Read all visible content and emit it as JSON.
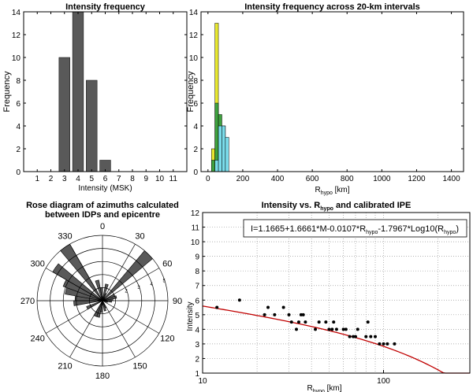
{
  "chart_data": [
    {
      "type": "bar",
      "title": "Intensity frequency",
      "xlabel": "Intensity (MSK)",
      "ylabel": "Frequency",
      "x_ticks": [
        "1",
        "2",
        "3",
        "4",
        "5",
        "6",
        "7",
        "8",
        "9",
        "10",
        "11"
      ],
      "y_ticks": [
        "0",
        "2",
        "4",
        "6",
        "8",
        "10",
        "12",
        "14"
      ],
      "ylim": [
        0,
        14
      ],
      "categories": [
        3,
        4,
        5,
        6
      ],
      "values": [
        10,
        14,
        8,
        1
      ],
      "bar_color": "#595959"
    },
    {
      "type": "bar",
      "title": "Intensity frequency across 20-km intervals",
      "xlabel": "R",
      "xlabel_sub": "hypo",
      "xlabel_unit": "[km]",
      "ylabel": "Frequency",
      "x_ticks": [
        "0",
        "200",
        "400",
        "600",
        "800",
        "1000",
        "1200",
        "1400"
      ],
      "y_ticks": [
        "0",
        "2",
        "4",
        "6",
        "8",
        "10",
        "12",
        "14"
      ],
      "xlim": [
        -40,
        1470
      ],
      "ylim": [
        0,
        14
      ],
      "bin_width_km": 20,
      "series": [
        {
          "color": "#e8e830",
          "bins": [
            {
              "x0": 20,
              "x1": 40,
              "value": 2
            },
            {
              "x0": 40,
              "x1": 60,
              "value": 13
            }
          ]
        },
        {
          "color": "#3fa23f",
          "bins": [
            {
              "x0": 20,
              "x1": 40,
              "value": 1
            },
            {
              "x0": 40,
              "x1": 60,
              "value": 6
            },
            {
              "x0": 60,
              "x1": 80,
              "value": 5
            },
            {
              "x0": 80,
              "x1": 100,
              "value": 4
            }
          ]
        },
        {
          "color": "#7adcea",
          "bins": [
            {
              "x0": 40,
              "x1": 60,
              "value": 1
            },
            {
              "x0": 60,
              "x1": 80,
              "value": 4
            },
            {
              "x0": 80,
              "x1": 100,
              "value": 4
            },
            {
              "x0": 100,
              "x1": 120,
              "value": 3
            }
          ]
        }
      ]
    },
    {
      "type": "rose",
      "title_lines": [
        "Rose diagram of azimuths calculated",
        "between  IDPs and epicentre"
      ],
      "angle_labels": [
        {
          "deg": 0,
          "text": "0"
        },
        {
          "deg": 30,
          "text": "30"
        },
        {
          "deg": 60,
          "text": "60"
        },
        {
          "deg": 90,
          "text": "90"
        },
        {
          "deg": 120,
          "text": "120"
        },
        {
          "deg": 150,
          "text": "150"
        },
        {
          "deg": 180,
          "text": "180"
        },
        {
          "deg": 210,
          "text": "210"
        },
        {
          "deg": 240,
          "text": "240"
        },
        {
          "deg": 270,
          "text": "270"
        },
        {
          "deg": 300,
          "text": "300"
        },
        {
          "deg": 330,
          "text": "330"
        }
      ],
      "radial_ticks": [
        "1",
        "2",
        "3",
        "4",
        "5"
      ],
      "rmax": 5,
      "sectors": [
        {
          "az0": 10,
          "az1": 20,
          "r": 1.3
        },
        {
          "az0": 20,
          "az1": 30,
          "r": 0.6
        },
        {
          "az0": 40,
          "az1": 50,
          "r": 5.0
        },
        {
          "az0": 60,
          "az1": 70,
          "r": 1.0
        },
        {
          "az0": 70,
          "az1": 80,
          "r": 1.1
        },
        {
          "az0": 80,
          "az1": 90,
          "r": 0.8
        },
        {
          "az0": 90,
          "az1": 100,
          "r": 0.7
        },
        {
          "az0": 100,
          "az1": 110,
          "r": 0.4
        },
        {
          "az0": 150,
          "az1": 160,
          "r": 0.6
        },
        {
          "az0": 160,
          "az1": 170,
          "r": 0.8
        },
        {
          "az0": 180,
          "az1": 190,
          "r": 0.9
        },
        {
          "az0": 190,
          "az1": 200,
          "r": 1.3
        },
        {
          "az0": 200,
          "az1": 210,
          "r": 1.3
        },
        {
          "az0": 240,
          "az1": 250,
          "r": 1.3
        },
        {
          "az0": 260,
          "az1": 270,
          "r": 2.2
        },
        {
          "az0": 270,
          "az1": 280,
          "r": 2.1
        },
        {
          "az0": 280,
          "az1": 290,
          "r": 2.9
        },
        {
          "az0": 290,
          "az1": 300,
          "r": 3.2
        },
        {
          "az0": 300,
          "az1": 310,
          "r": 4.4
        },
        {
          "az0": 320,
          "az1": 330,
          "r": 5.0
        },
        {
          "az0": 340,
          "az1": 350,
          "r": 1.6
        },
        {
          "az0": 350,
          "az1": 360,
          "r": 1.0
        }
      ],
      "fill_color": "#595959"
    },
    {
      "type": "scatter",
      "title_before": "Intensity vs. R",
      "title_sub": "hypo",
      "title_after": " and calibrated IPE",
      "xlabel": "R",
      "xlabel_sub": "hypo",
      "xlabel_unit": "[km]",
      "ylabel": "Intensity",
      "x_scale": "log",
      "xlim": [
        10,
        300
      ],
      "ylim": [
        1,
        12
      ],
      "x_ticks": [
        {
          "v": 10,
          "t": "10"
        },
        {
          "v": 100,
          "t": "100"
        }
      ],
      "y_ticks": [
        "1",
        "2",
        "3",
        "4",
        "5",
        "6",
        "7",
        "8",
        "9",
        "10",
        "11",
        "12"
      ],
      "grid": true,
      "equation_segments": [
        {
          "t": "I=1.1665+1.6661*M-0.0107*R",
          "sub": false
        },
        {
          "t": "hypo",
          "sub": true
        },
        {
          "t": "-1.7967*Log10(R",
          "sub": false
        },
        {
          "t": "hypo",
          "sub": true
        },
        {
          "t": ")",
          "sub": false
        }
      ],
      "curve": {
        "a": 1.1665,
        "b": 1.6661,
        "c": 0.0107,
        "d": 1.7967,
        "M": 3.8,
        "color": "#c00000"
      },
      "points": [
        {
          "x": 12,
          "y": 5.5
        },
        {
          "x": 16,
          "y": 6.0
        },
        {
          "x": 22,
          "y": 5.0
        },
        {
          "x": 23,
          "y": 5.5
        },
        {
          "x": 25,
          "y": 5.0
        },
        {
          "x": 28,
          "y": 5.5
        },
        {
          "x": 30,
          "y": 5.0
        },
        {
          "x": 31,
          "y": 4.5
        },
        {
          "x": 33,
          "y": 4.0
        },
        {
          "x": 34,
          "y": 4.5
        },
        {
          "x": 35,
          "y": 5.0
        },
        {
          "x": 36,
          "y": 5.0
        },
        {
          "x": 37,
          "y": 4.5
        },
        {
          "x": 42,
          "y": 4.0
        },
        {
          "x": 44,
          "y": 4.5
        },
        {
          "x": 48,
          "y": 4.5
        },
        {
          "x": 50,
          "y": 4.0
        },
        {
          "x": 52,
          "y": 4.0
        },
        {
          "x": 53,
          "y": 4.5
        },
        {
          "x": 55,
          "y": 4.0
        },
        {
          "x": 60,
          "y": 4.0
        },
        {
          "x": 62,
          "y": 4.0
        },
        {
          "x": 65,
          "y": 3.5
        },
        {
          "x": 68,
          "y": 3.5
        },
        {
          "x": 70,
          "y": 3.5
        },
        {
          "x": 72,
          "y": 4.0
        },
        {
          "x": 80,
          "y": 3.5
        },
        {
          "x": 82,
          "y": 4.5
        },
        {
          "x": 85,
          "y": 3.5
        },
        {
          "x": 90,
          "y": 3.5
        },
        {
          "x": 95,
          "y": 3.0
        },
        {
          "x": 100,
          "y": 3.0
        },
        {
          "x": 105,
          "y": 3.0
        },
        {
          "x": 115,
          "y": 3.0
        }
      ]
    }
  ]
}
